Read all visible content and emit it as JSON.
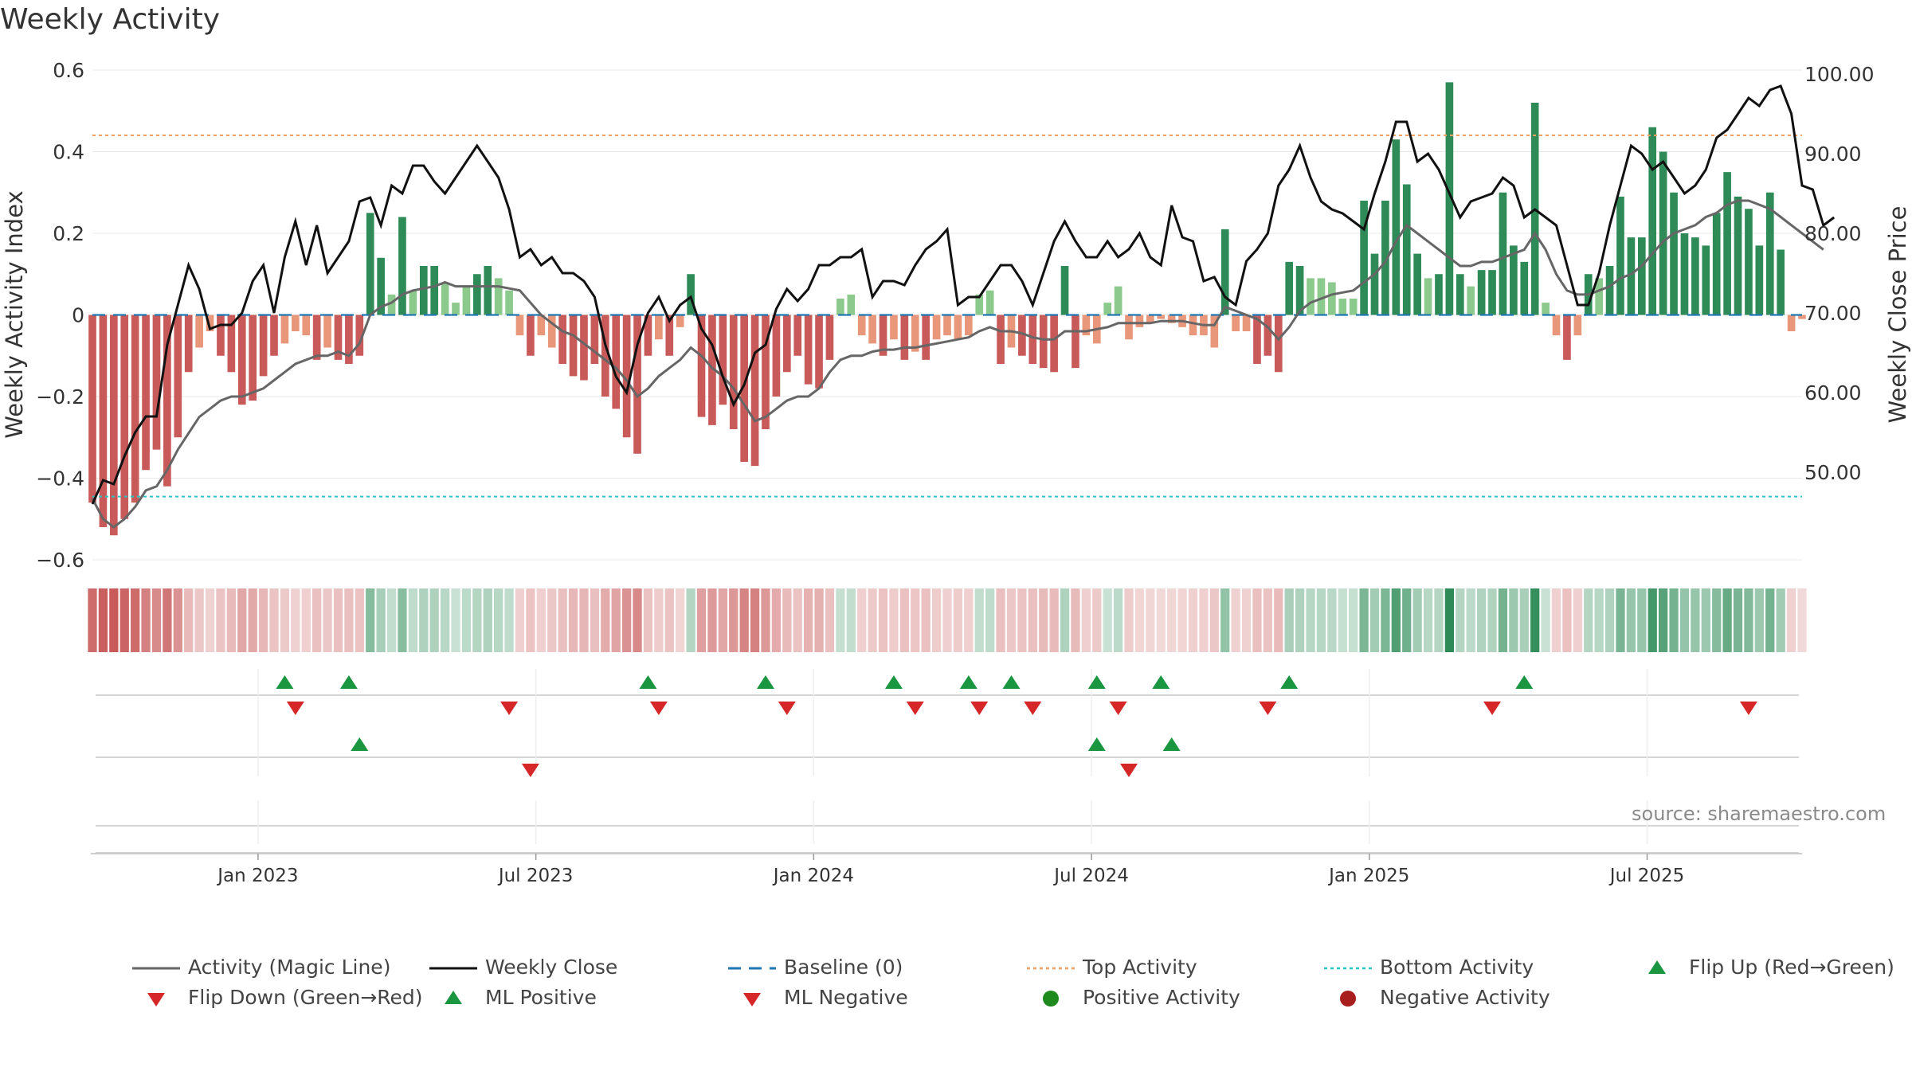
{
  "chart_data": {
    "type": "bar+line",
    "title": "Weekly Activity",
    "ylabel_left": "Weekly Activity Index",
    "ylabel_right": "Weekly Close Price",
    "ylim_left": [
      -0.6,
      0.6
    ],
    "ylim_right": [
      40.0,
      100.0
    ],
    "yticks_left": [
      -0.6,
      -0.4,
      -0.2,
      0,
      0.2,
      0.4,
      0.6
    ],
    "ytick_labels_left": [
      "−0.6",
      "−0.4",
      "−0.2",
      "0",
      "0.2",
      "0.4",
      "0.6"
    ],
    "yticks_right": [
      50,
      60,
      70,
      80,
      90,
      100
    ],
    "ytick_labels_right": [
      "50.00",
      "60.00",
      "70.00",
      "80.00",
      "90.00",
      "100.00"
    ],
    "x_start": "2022-09-12",
    "x_end": "2025-09-15",
    "xticks": [
      "Jan 2023",
      "Jul 2023",
      "Jan 2024",
      "Jul 2024",
      "Jan 2025",
      "Jul 2025"
    ],
    "xtick_weeks": [
      15.5,
      41.5,
      67.5,
      93.5,
      119.5,
      145.5
    ],
    "top_activity": 0.44,
    "bottom_activity": -0.445,
    "activity_index": [
      -0.46,
      -0.52,
      -0.54,
      -0.5,
      -0.46,
      -0.38,
      -0.33,
      -0.42,
      -0.3,
      -0.14,
      -0.08,
      -0.04,
      -0.1,
      -0.14,
      -0.22,
      -0.21,
      -0.15,
      -0.1,
      -0.07,
      -0.04,
      -0.05,
      -0.11,
      -0.08,
      -0.11,
      -0.12,
      -0.1,
      0.25,
      0.14,
      0.05,
      0.24,
      0.06,
      0.12,
      0.12,
      0.08,
      0.03,
      0.07,
      0.1,
      0.12,
      0.09,
      0.06,
      -0.05,
      -0.1,
      -0.05,
      -0.08,
      -0.12,
      -0.15,
      -0.16,
      -0.12,
      -0.2,
      -0.23,
      -0.3,
      -0.34,
      -0.1,
      -0.06,
      -0.1,
      -0.03,
      0.1,
      -0.25,
      -0.27,
      -0.22,
      -0.28,
      -0.36,
      -0.37,
      -0.28,
      -0.2,
      -0.14,
      -0.1,
      -0.17,
      -0.18,
      -0.11,
      0.04,
      0.05,
      -0.05,
      -0.07,
      -0.1,
      -0.06,
      -0.11,
      -0.09,
      -0.11,
      -0.06,
      -0.05,
      -0.06,
      -0.05,
      0.05,
      0.06,
      -0.12,
      -0.08,
      -0.1,
      -0.12,
      -0.13,
      -0.14,
      0.12,
      -0.13,
      -0.05,
      -0.07,
      0.03,
      0.07,
      -0.06,
      -0.03,
      -0.02,
      -0.01,
      -0.02,
      -0.03,
      -0.05,
      -0.05,
      -0.08,
      0.21,
      -0.04,
      -0.04,
      -0.12,
      -0.1,
      -0.14,
      0.13,
      0.12,
      0.09,
      0.09,
      0.08,
      0.04,
      0.04,
      0.28,
      0.15,
      0.28,
      0.43,
      0.32,
      0.15,
      0.09,
      0.1,
      0.57,
      0.1,
      0.07,
      0.11,
      0.11,
      0.3,
      0.17,
      0.13,
      0.52,
      0.03,
      -0.05,
      -0.11,
      -0.05,
      0.1,
      0.09,
      0.12,
      0.29,
      0.19,
      0.19,
      0.46,
      0.4,
      0.3,
      0.2,
      0.19,
      0.17,
      0.25,
      0.35,
      0.29,
      0.26,
      0.17,
      0.3,
      0.16,
      -0.04,
      -0.01
    ],
    "magic_line": [
      -0.45,
      -0.5,
      -0.52,
      -0.5,
      -0.47,
      -0.43,
      -0.42,
      -0.38,
      -0.33,
      -0.29,
      -0.25,
      -0.23,
      -0.21,
      -0.2,
      -0.2,
      -0.19,
      -0.18,
      -0.16,
      -0.14,
      -0.12,
      -0.11,
      -0.1,
      -0.1,
      -0.09,
      -0.1,
      -0.07,
      0.0,
      0.02,
      0.03,
      0.05,
      0.06,
      0.065,
      0.07,
      0.08,
      0.07,
      0.07,
      0.07,
      0.07,
      0.07,
      0.065,
      0.06,
      0.03,
      0.0,
      -0.02,
      -0.04,
      -0.05,
      -0.07,
      -0.09,
      -0.11,
      -0.13,
      -0.16,
      -0.2,
      -0.18,
      -0.15,
      -0.13,
      -0.11,
      -0.08,
      -0.1,
      -0.13,
      -0.15,
      -0.18,
      -0.22,
      -0.26,
      -0.25,
      -0.23,
      -0.21,
      -0.2,
      -0.2,
      -0.18,
      -0.14,
      -0.11,
      -0.1,
      -0.1,
      -0.09,
      -0.085,
      -0.085,
      -0.08,
      -0.08,
      -0.075,
      -0.07,
      -0.065,
      -0.06,
      -0.055,
      -0.04,
      -0.03,
      -0.04,
      -0.04,
      -0.045,
      -0.055,
      -0.06,
      -0.06,
      -0.04,
      -0.04,
      -0.04,
      -0.035,
      -0.03,
      -0.02,
      -0.02,
      -0.02,
      -0.02,
      -0.015,
      -0.015,
      -0.015,
      -0.02,
      -0.025,
      -0.025,
      0.02,
      0.01,
      0.0,
      -0.01,
      -0.03,
      -0.06,
      -0.03,
      0.01,
      0.03,
      0.04,
      0.05,
      0.055,
      0.06,
      0.08,
      0.1,
      0.13,
      0.18,
      0.22,
      0.2,
      0.18,
      0.16,
      0.14,
      0.12,
      0.12,
      0.13,
      0.13,
      0.14,
      0.15,
      0.16,
      0.2,
      0.16,
      0.1,
      0.06,
      0.05,
      0.05,
      0.06,
      0.07,
      0.09,
      0.1,
      0.12,
      0.15,
      0.18,
      0.2,
      0.21,
      0.22,
      0.24,
      0.25,
      0.27,
      0.28,
      0.28,
      0.27,
      0.26,
      0.24,
      0.22,
      0.2,
      0.18,
      0.16
    ],
    "weekly_close": [
      46.0,
      49.0,
      48.5,
      52.0,
      55.0,
      57.0,
      57.0,
      66.0,
      71.0,
      76.0,
      73.0,
      68.0,
      68.5,
      68.5,
      70.0,
      74.0,
      76.0,
      70.0,
      77.0,
      81.5,
      76.0,
      81.0,
      75.0,
      77.0,
      79.0,
      84.0,
      84.5,
      81.0,
      86.0,
      85.0,
      88.5,
      88.5,
      86.5,
      85.0,
      87.0,
      89.0,
      91.0,
      89.0,
      87.0,
      83.0,
      77.0,
      78.0,
      76.0,
      77.0,
      75.0,
      75.0,
      74.0,
      72.0,
      66.0,
      62.0,
      60.0,
      66.0,
      70.0,
      72.0,
      69.0,
      71.0,
      72.0,
      68.0,
      66.0,
      62.0,
      58.5,
      61.0,
      65.0,
      66.0,
      70.5,
      73.0,
      71.5,
      73.0,
      76.0,
      76.0,
      77.0,
      77.0,
      78.0,
      72.0,
      74.0,
      74.0,
      73.5,
      76.0,
      78.0,
      79.0,
      80.5,
      71.0,
      72.0,
      72.0,
      74.0,
      76.0,
      76.0,
      74.0,
      71.0,
      75.0,
      79.0,
      81.5,
      79.0,
      77.0,
      77.0,
      79.0,
      77.0,
      78.0,
      80.0,
      77.0,
      76.0,
      83.5,
      79.5,
      79.0,
      74.0,
      74.5,
      72.0,
      71.0,
      76.5,
      78.0,
      80.0,
      86.0,
      88.0,
      91.0,
      87.0,
      84.0,
      83.0,
      82.5,
      81.5,
      80.5,
      85.0,
      89.0,
      94.0,
      94.0,
      89.0,
      90.0,
      88.0,
      85.0,
      82.0,
      84.0,
      84.5,
      85.0,
      87.0,
      86.0,
      82.0,
      83.0,
      82.0,
      81.0,
      76.0,
      71.0,
      71.0,
      75.0,
      81.0,
      86.0,
      91.0,
      90.0,
      88.0,
      89.0,
      87.0,
      85.0,
      86.0,
      88.0,
      92.0,
      93.0,
      95.0,
      97.0,
      96.0,
      98.0,
      98.5,
      95.0,
      86.0,
      85.5,
      81.0,
      82.0
    ],
    "flip_up_weeks": [
      18,
      24,
      52,
      63,
      75,
      82,
      86,
      94,
      100,
      112,
      134
    ],
    "flip_down_weeks": [
      19,
      39,
      53,
      65,
      77,
      83,
      88,
      96,
      110,
      131,
      155
    ],
    "ml_positive_weeks": [
      25,
      94,
      101
    ],
    "ml_negative_weeks": [
      41,
      97
    ],
    "bar_colors": {
      "strong_positive": "#2e8b57",
      "weak_positive": "#8cc98c",
      "strong_negative": "#c85a5a",
      "weak_negative": "#e8977a"
    },
    "line_colors": {
      "magic_line": "#666666",
      "weekly_close": "#111111",
      "baseline": "#1f77b4",
      "top_activity": "#f4a261",
      "bottom_activity": "#2ec4c4",
      "flip_up": "#1a9641",
      "flip_down": "#d62728"
    }
  },
  "source_text": "source: sharemaestro.com",
  "legend": [
    {
      "key": "magic",
      "label": "Activity (Magic Line)"
    },
    {
      "key": "close",
      "label": "Weekly Close"
    },
    {
      "key": "baseline",
      "label": "Baseline (0)"
    },
    {
      "key": "top",
      "label": "Top Activity"
    },
    {
      "key": "bottom",
      "label": "Bottom Activity"
    },
    {
      "key": "flipup",
      "label": "Flip Up (Red→Green)"
    },
    {
      "key": "flipdown",
      "label": "Flip Down (Green→Red)"
    },
    {
      "key": "mlpos",
      "label": "ML Positive"
    },
    {
      "key": "mlneg",
      "label": "ML Negative"
    },
    {
      "key": "pos",
      "label": "Positive Activity"
    },
    {
      "key": "neg",
      "label": "Negative Activity"
    }
  ]
}
